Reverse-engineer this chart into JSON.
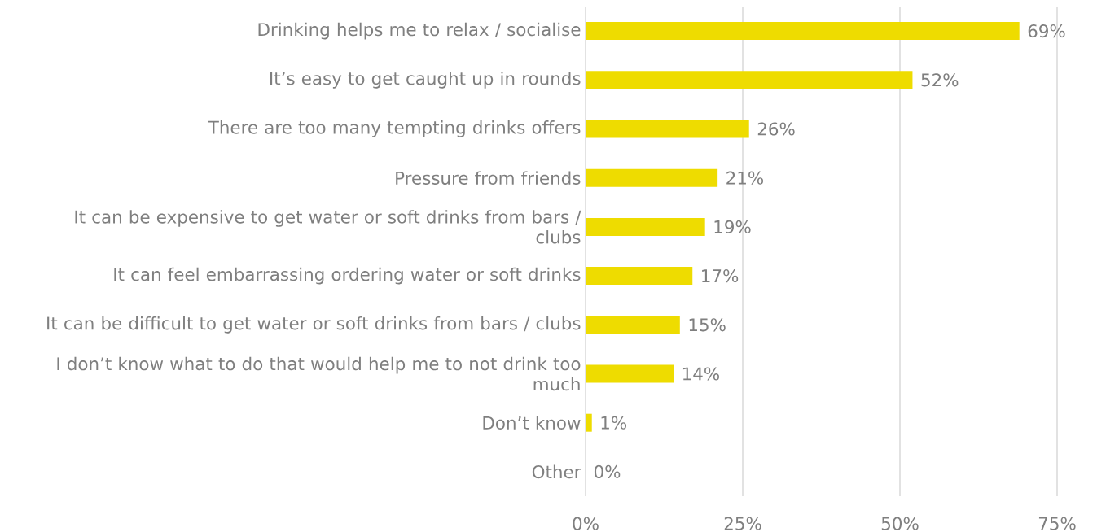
{
  "chart_data": {
    "type": "bar",
    "orientation": "horizontal",
    "categories": [
      "Drinking helps me to relax / socialise",
      "It’s easy to get caught up in rounds",
      "There are too many tempting drinks offers",
      "Pressure from friends",
      "It can be expensive to get water or soft drinks from bars / clubs",
      "It can feel embarrassing ordering water or soft drinks",
      "It can be difficult to get water or soft drinks from bars / clubs",
      "I don’t know what to do that would help me to not drink too much",
      "Don’t know",
      "Other"
    ],
    "values": [
      69,
      52,
      26,
      21,
      19,
      17,
      15,
      14,
      1,
      0
    ],
    "value_labels": [
      "69%",
      "52%",
      "26%",
      "21%",
      "19%",
      "17%",
      "15%",
      "14%",
      "1%",
      "0%"
    ],
    "color": "#eedc00",
    "xlim": [
      0,
      75
    ],
    "xticks": [
      {
        "value": 0,
        "label": "0%"
      },
      {
        "value": 25,
        "label": "25%"
      },
      {
        "value": 50,
        "label": "50%"
      },
      {
        "value": 75,
        "label": "75%"
      }
    ],
    "grid": "x"
  }
}
